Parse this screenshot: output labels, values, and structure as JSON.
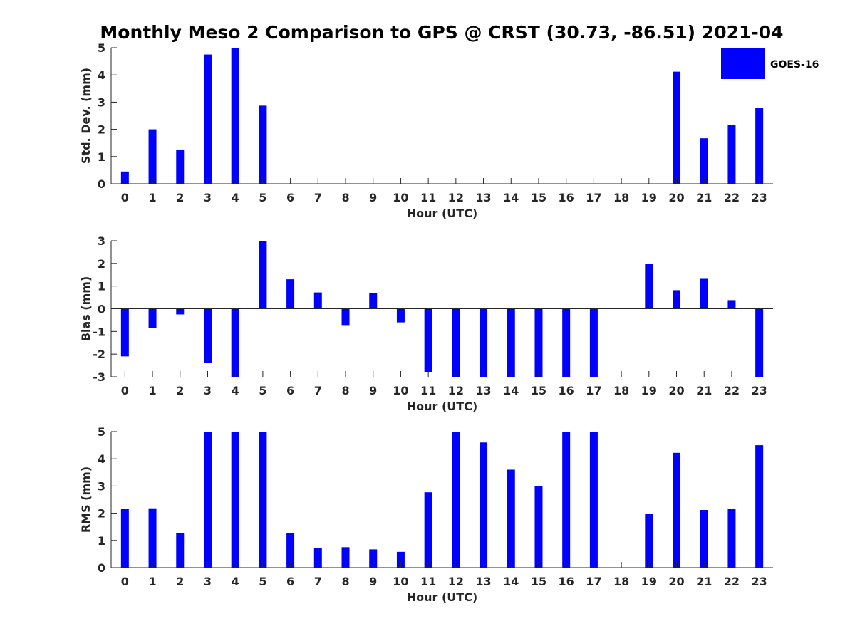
{
  "figure": {
    "title": "Monthly Meso 2 Comparison to GPS @ CRST (30.73, -86.51) 2021-04",
    "legend": {
      "label": "GOES-16",
      "color": "#0000ff",
      "placement": "top-right"
    }
  },
  "chart_data": [
    {
      "type": "bar",
      "ylabel": "Std. Dev. (mm)",
      "xlabel": "Hour (UTC)",
      "ylim": [
        0,
        5
      ],
      "yticks": [
        0,
        1,
        2,
        3,
        4,
        5
      ],
      "categories": [
        "0",
        "1",
        "2",
        "3",
        "4",
        "5",
        "6",
        "7",
        "8",
        "9",
        "10",
        "11",
        "12",
        "13",
        "14",
        "15",
        "16",
        "17",
        "18",
        "19",
        "20",
        "21",
        "22",
        "23"
      ],
      "series": [
        {
          "name": "GOES-16",
          "color": "#0000ff",
          "values": [
            0.45,
            2.0,
            1.25,
            4.75,
            5.0,
            2.87,
            0,
            0,
            0,
            0,
            0,
            0,
            0,
            0,
            0,
            0,
            0,
            0,
            0,
            0,
            4.12,
            1.67,
            2.15,
            2.8
          ]
        }
      ]
    },
    {
      "type": "bar",
      "ylabel": "Bias (mm)",
      "xlabel": "Hour (UTC)",
      "ylim": [
        -3,
        3
      ],
      "yticks": [
        -3,
        -2,
        -1,
        0,
        1,
        2,
        3
      ],
      "categories": [
        "0",
        "1",
        "2",
        "3",
        "4",
        "5",
        "6",
        "7",
        "8",
        "9",
        "10",
        "11",
        "12",
        "13",
        "14",
        "15",
        "16",
        "17",
        "18",
        "19",
        "20",
        "21",
        "22",
        "23"
      ],
      "series": [
        {
          "name": "GOES-16",
          "color": "#0000ff",
          "values": [
            -2.1,
            -0.85,
            -0.25,
            -2.4,
            -3.0,
            3.0,
            1.3,
            0.72,
            -0.75,
            0.7,
            -0.6,
            -2.8,
            -3.0,
            -3.0,
            -3.0,
            -3.0,
            -3.0,
            -3.0,
            0,
            1.97,
            0.82,
            1.32,
            0.38,
            -3.0
          ]
        }
      ]
    },
    {
      "type": "bar",
      "ylabel": "RMS (mm)",
      "xlabel": "Hour (UTC)",
      "ylim": [
        0,
        5
      ],
      "yticks": [
        0,
        1,
        2,
        3,
        4,
        5
      ],
      "categories": [
        "0",
        "1",
        "2",
        "3",
        "4",
        "5",
        "6",
        "7",
        "8",
        "9",
        "10",
        "11",
        "12",
        "13",
        "14",
        "15",
        "16",
        "17",
        "18",
        "19",
        "20",
        "21",
        "22",
        "23"
      ],
      "series": [
        {
          "name": "GOES-16",
          "color": "#0000ff",
          "values": [
            2.15,
            2.18,
            1.28,
            5.0,
            5.0,
            5.0,
            1.27,
            0.72,
            0.75,
            0.67,
            0.58,
            2.77,
            5.0,
            4.6,
            3.6,
            3.0,
            5.0,
            5.0,
            0,
            1.97,
            4.22,
            2.12,
            2.15,
            4.5
          ]
        }
      ]
    }
  ]
}
